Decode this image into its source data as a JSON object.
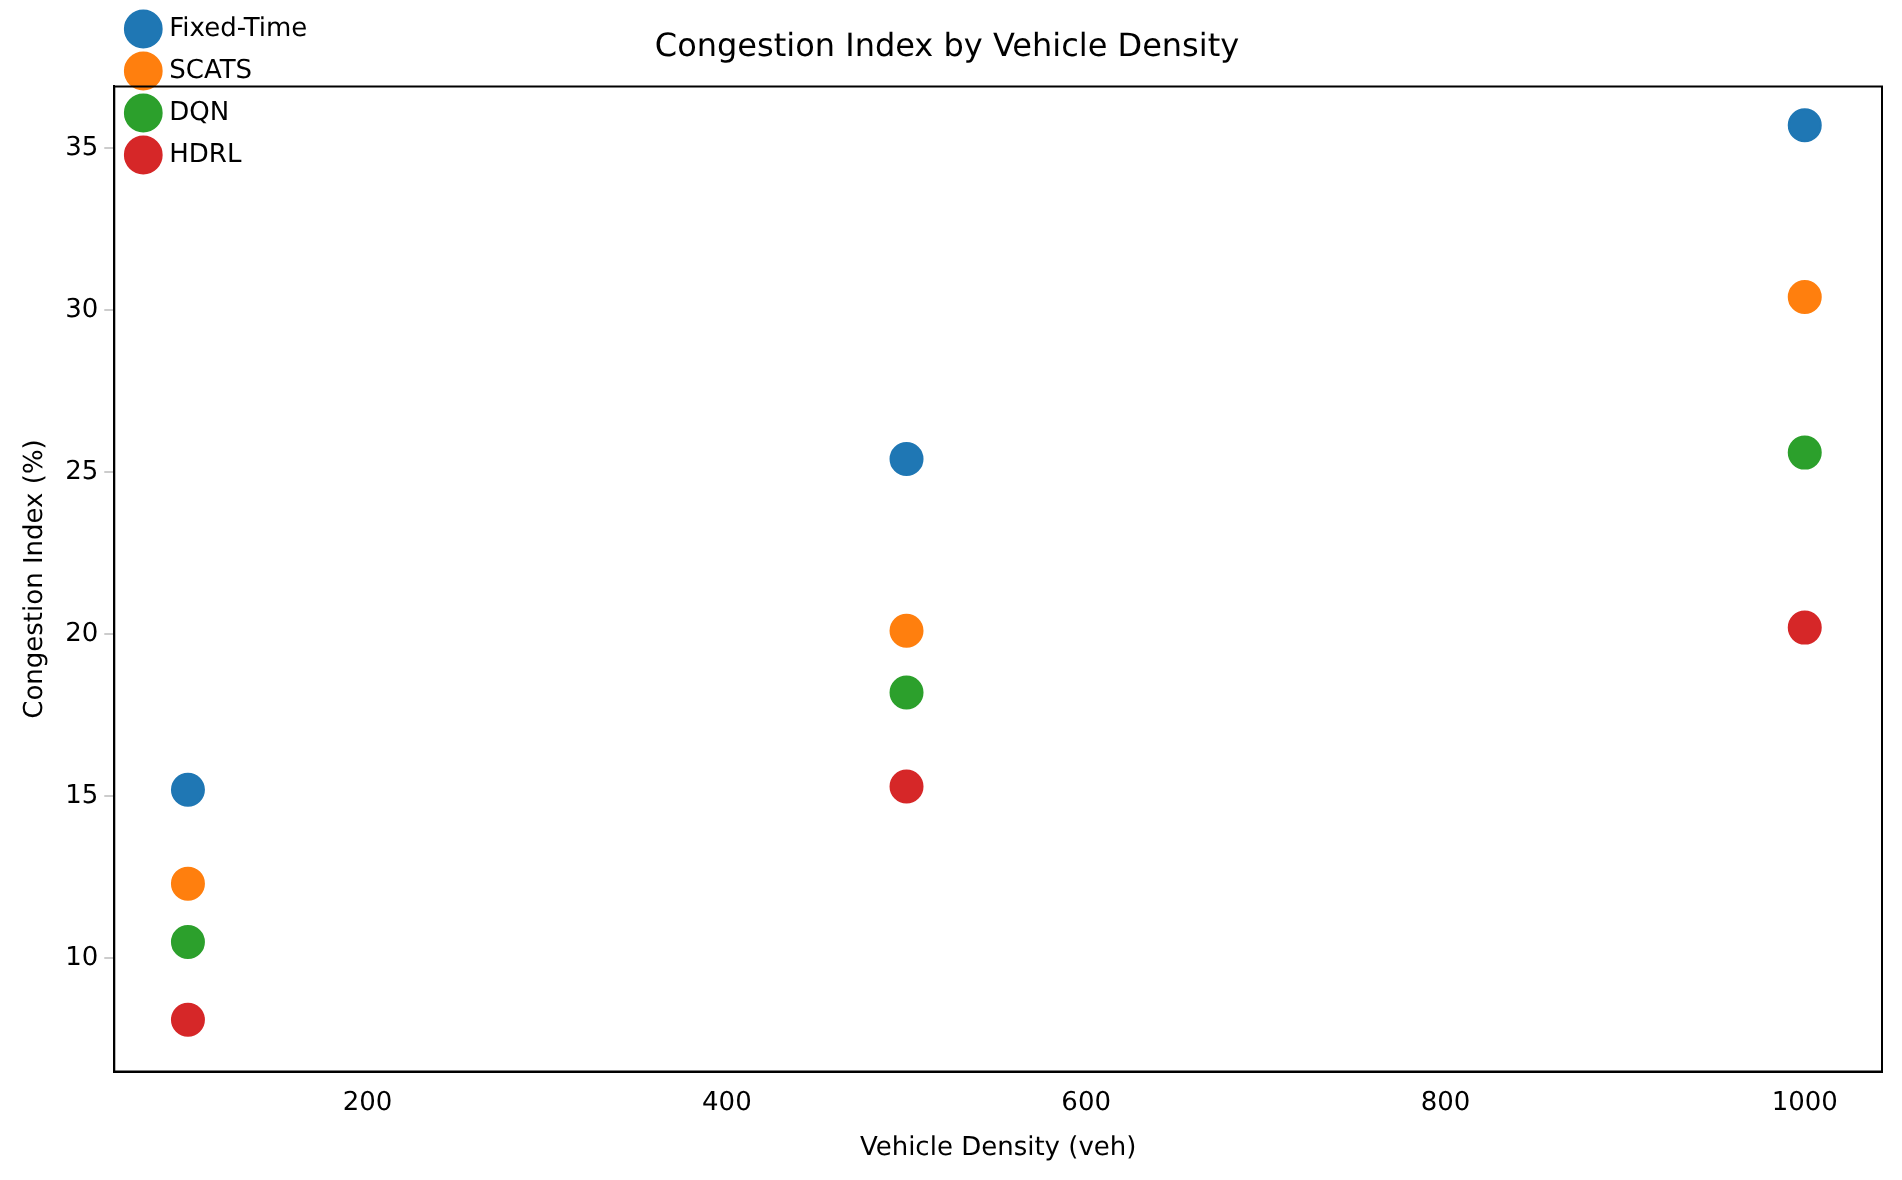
{
  "chart_data": {
    "type": "scatter",
    "title": "Congestion Index by Vehicle Density",
    "xlabel": "Vehicle Density (veh)",
    "ylabel": "Congestion Index (%)",
    "x": [
      100,
      500,
      1000
    ],
    "series": [
      {
        "name": "Fixed-Time",
        "color": "#1f77b4",
        "values": [
          15.2,
          25.4,
          35.7
        ]
      },
      {
        "name": "SCATS",
        "color": "#ff7f0e",
        "values": [
          12.3,
          20.1,
          30.4
        ]
      },
      {
        "name": "DQN",
        "color": "#2ca02c",
        "values": [
          10.5,
          18.2,
          25.6
        ]
      },
      {
        "name": "HDRL",
        "color": "#d62728",
        "values": [
          8.1,
          15.3,
          20.2
        ]
      }
    ],
    "xlim": [
      59,
      1043
    ],
    "xticks": [
      200,
      400,
      600,
      800,
      1000
    ],
    "ylim": [
      6.5,
      36.9
    ],
    "yticks": [
      10,
      15,
      20,
      25,
      30,
      35
    ],
    "grid": false,
    "legend": "top left",
    "marker": "circle"
  }
}
